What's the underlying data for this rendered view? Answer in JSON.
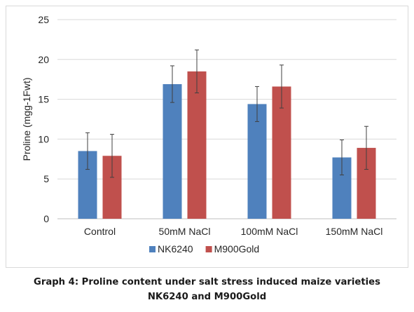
{
  "chart_data": {
    "type": "bar",
    "categories": [
      "Control",
      "50mM NaCl",
      "100mM NaCl",
      "150mM NaCl"
    ],
    "series": [
      {
        "name": "NK6240",
        "values": [
          8.5,
          16.9,
          14.4,
          7.7
        ],
        "errors": [
          2.3,
          2.3,
          2.2,
          2.2
        ],
        "color": "#4f81bd"
      },
      {
        "name": "M900Gold",
        "values": [
          7.9,
          18.5,
          16.6,
          8.9
        ],
        "errors": [
          2.7,
          2.7,
          2.7,
          2.7
        ],
        "color": "#c0504d"
      }
    ],
    "ylabel": "Proline (mgg-1Fwt)",
    "xlabel": "",
    "ylim": [
      0,
      25
    ],
    "yticks": [
      0,
      5,
      10,
      15,
      20,
      25
    ],
    "grid": true,
    "legend_position": "bottom"
  },
  "caption": {
    "line1": "Graph 4: Proline content under salt stress induced maize varieties",
    "line2": "NK6240 and M900Gold"
  }
}
